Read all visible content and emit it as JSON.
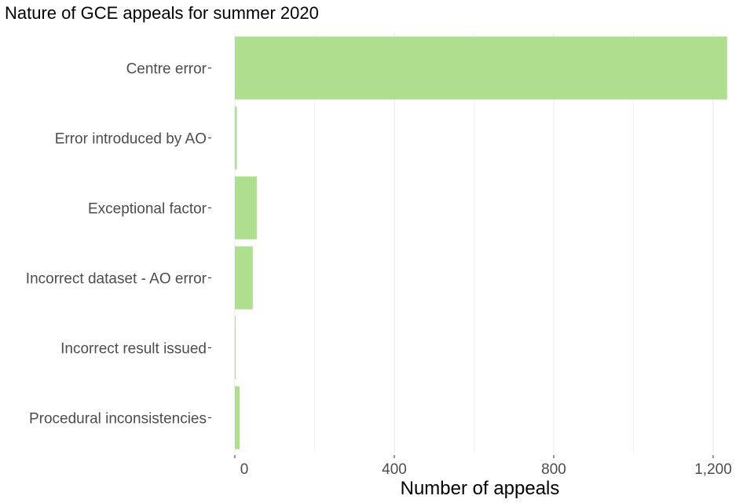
{
  "chart_data": {
    "type": "bar",
    "orientation": "horizontal",
    "title": "Nature of GCE appeals for summer 2020",
    "xlabel": "Number of appeals",
    "ylabel": "",
    "categories": [
      "Centre error",
      "Error introduced by AO",
      "Exceptional factor",
      "Incorrect dataset - AO error",
      "Incorrect result issued",
      "Procedural inconsistencies"
    ],
    "values": [
      1235,
      5,
      55,
      45,
      2,
      12
    ],
    "xlim": [
      0,
      1260
    ],
    "ticks": [
      0,
      400,
      800,
      1200
    ],
    "tick_labels": [
      "0",
      "400",
      "800",
      "1,200"
    ],
    "grid": true,
    "legend": "none",
    "bar_color": "#addf8f",
    "grid_color": "#ebebeb"
  }
}
